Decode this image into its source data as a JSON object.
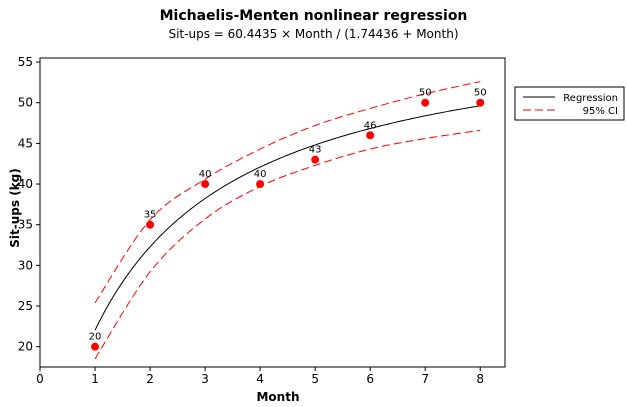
{
  "chart_data": {
    "type": "scatter",
    "title": "Michaelis-Menten nonlinear regression",
    "subtitle": "Sit-ups = 60.4435 × Month / (1.74436 + Month)",
    "xlabel": "Month",
    "ylabel": "Sit-ups (kg)",
    "xlim": [
      0,
      8.45
    ],
    "ylim": [
      17.5,
      55.5
    ],
    "xticks": [
      0,
      1,
      2,
      3,
      4,
      5,
      6,
      7,
      8
    ],
    "yticks": [
      20,
      25,
      30,
      35,
      40,
      45,
      50,
      55
    ],
    "grid": false,
    "legend_position": "outside-right",
    "model": {
      "vmax": 60.4435,
      "km": 1.74436
    },
    "fit_range": [
      1,
      8
    ],
    "points": [
      {
        "x": 1,
        "y": 20,
        "label": "20"
      },
      {
        "x": 2,
        "y": 35,
        "label": "35"
      },
      {
        "x": 3,
        "y": 40,
        "label": "40"
      },
      {
        "x": 4,
        "y": 40,
        "label": "40"
      },
      {
        "x": 5,
        "y": 43,
        "label": "43"
      },
      {
        "x": 6,
        "y": 46,
        "label": "46"
      },
      {
        "x": 7,
        "y": 50,
        "label": "50"
      },
      {
        "x": 8,
        "y": 50,
        "label": "50"
      }
    ],
    "ci_upper": [
      {
        "x": 1,
        "y": 25.4
      },
      {
        "x": 2,
        "y": 35.6
      },
      {
        "x": 3,
        "y": 40.6
      },
      {
        "x": 4,
        "y": 44.3
      },
      {
        "x": 5,
        "y": 47.2
      },
      {
        "x": 6,
        "y": 49.3
      },
      {
        "x": 7,
        "y": 51.1
      },
      {
        "x": 8,
        "y": 52.6
      }
    ],
    "ci_lower": [
      {
        "x": 1,
        "y": 18.5
      },
      {
        "x": 2,
        "y": 29.2
      },
      {
        "x": 3,
        "y": 35.7
      },
      {
        "x": 4,
        "y": 39.7
      },
      {
        "x": 5,
        "y": 42.3
      },
      {
        "x": 6,
        "y": 44.3
      },
      {
        "x": 7,
        "y": 45.6
      },
      {
        "x": 8,
        "y": 46.6
      }
    ],
    "series": [
      {
        "name": "Regression",
        "color": "#000000",
        "style": "solid"
      },
      {
        "name": "95% CI",
        "color": "#ff0000",
        "style": "dashed"
      }
    ],
    "point_color": "#ff0000"
  }
}
